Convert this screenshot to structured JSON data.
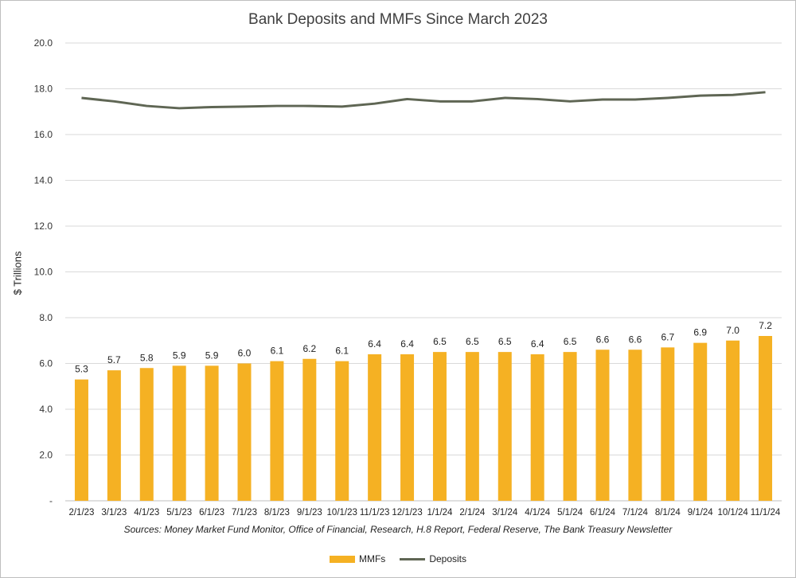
{
  "chart_data": {
    "type": "bar",
    "title": "Bank Deposits and MMFs Since March 2023",
    "ylabel": "$ Trillions",
    "xlabel": "",
    "source": "Sources: Money Market Fund Monitor, Office of Financial, Research, H.8 Report, Federal Reserve, The Bank Treasury Newsletter",
    "ylim": [
      0,
      20
    ],
    "yticks": [
      "-",
      "2.0",
      "4.0",
      "6.0",
      "8.0",
      "10.0",
      "12.0",
      "14.0",
      "16.0",
      "18.0",
      "20.0"
    ],
    "grid": "horizontal",
    "legend_position": "bottom",
    "categories": [
      "2/1/23",
      "3/1/23",
      "4/1/23",
      "5/1/23",
      "6/1/23",
      "7/1/23",
      "8/1/23",
      "9/1/23",
      "10/1/23",
      "11/1/23",
      "12/1/23",
      "1/1/24",
      "2/1/24",
      "3/1/24",
      "4/1/24",
      "5/1/24",
      "6/1/24",
      "7/1/24",
      "8/1/24",
      "9/1/24",
      "10/1/24",
      "11/1/24"
    ],
    "series": [
      {
        "name": "MMFs",
        "type": "bar",
        "color": "#F5B123",
        "values": [
          5.3,
          5.7,
          5.8,
          5.9,
          5.9,
          6.0,
          6.1,
          6.2,
          6.1,
          6.4,
          6.4,
          6.5,
          6.5,
          6.5,
          6.4,
          6.5,
          6.6,
          6.6,
          6.7,
          6.9,
          7.0,
          7.2
        ],
        "labels": [
          "5.3",
          "5.7",
          "5.8",
          "5.9",
          "5.9",
          "6.0",
          "6.1",
          "6.2",
          "6.1",
          "6.4",
          "6.4",
          "6.5",
          "6.5",
          "6.5",
          "6.4",
          "6.5",
          "6.6",
          "6.6",
          "6.7",
          "6.9",
          "7.0",
          "7.2"
        ]
      },
      {
        "name": "Deposits",
        "type": "line",
        "color": "#5F6654",
        "values": [
          17.6,
          17.45,
          17.25,
          17.15,
          17.2,
          17.22,
          17.25,
          17.25,
          17.22,
          17.35,
          17.55,
          17.45,
          17.45,
          17.6,
          17.55,
          17.45,
          17.53,
          17.53,
          17.6,
          17.7,
          17.73,
          17.85
        ]
      }
    ]
  }
}
